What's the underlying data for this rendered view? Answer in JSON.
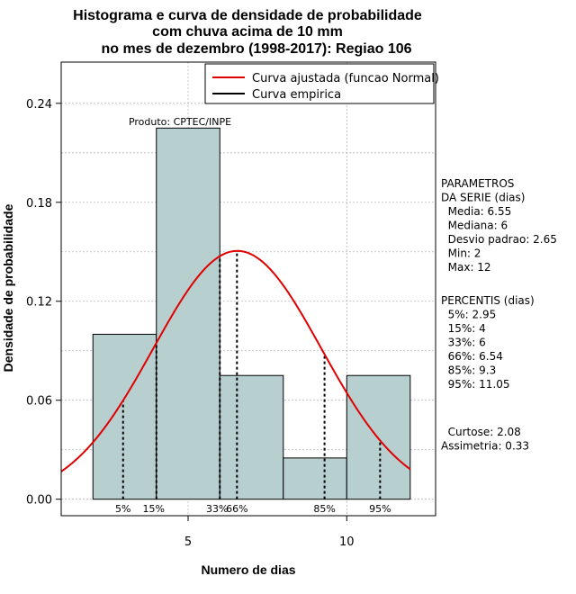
{
  "chart_data": {
    "type": "bar",
    "title_lines": [
      "Histograma e curva de densidade de probabilidade",
      "com chuva acima de 10 mm",
      "no mes de dezembro (1998-2017): Regiao 106"
    ],
    "xlabel": "Numero de dias",
    "ylabel": "Densidade de probabilidade",
    "xlim": [
      1.0,
      12.8
    ],
    "ylim": [
      -0.01,
      0.265
    ],
    "x_ticks": [
      5,
      10
    ],
    "y_ticks": [
      0.0,
      0.06,
      0.12,
      0.18,
      0.24
    ],
    "y_tick_labels": [
      "0.00",
      "0.06",
      "0.12",
      "0.18",
      "0.24"
    ],
    "grid": true,
    "legend_position": "top-right",
    "bins": [
      {
        "from": 2,
        "to": 4,
        "density": 0.1
      },
      {
        "from": 4,
        "to": 6,
        "density": 0.225
      },
      {
        "from": 6,
        "to": 8,
        "density": 0.075
      },
      {
        "from": 8,
        "to": 10,
        "density": 0.025
      },
      {
        "from": 10,
        "to": 12,
        "density": 0.075
      }
    ],
    "bar_color": "#b7cfcf",
    "series": [
      {
        "name": "Curva ajustada (funcao Normal)",
        "type": "line",
        "color": "#e00000",
        "distribution": "normal",
        "mean": 6.55,
        "sd": 2.65,
        "x_range": [
          1.0,
          12.0
        ]
      },
      {
        "name": "Curva empirica",
        "type": "line",
        "color": "#000000"
      }
    ],
    "percentile_marks": [
      {
        "label": "5%",
        "x": 2.95
      },
      {
        "label": "15%",
        "x": 4
      },
      {
        "label": "33%",
        "x": 6
      },
      {
        "label": "66%",
        "x": 6.54
      },
      {
        "label": "85%",
        "x": 9.3
      },
      {
        "label": "95%",
        "x": 11.05
      }
    ],
    "annotation": "Produto: CPTEC/INPE",
    "parameters_block": [
      "PARAMETROS",
      "DA SERIE (dias)",
      "  Media: 6.55",
      "  Mediana: 6",
      "  Desvio padrao: 2.65",
      "  Min: 2",
      "  Max: 12"
    ],
    "percentiles_block": [
      "PERCENTIS (dias)",
      "  5%: 2.95",
      "  15%: 4",
      "  33%: 6",
      "  66%: 6.54",
      "  85%: 9.3",
      "  95%: 11.05"
    ],
    "shape_block": [
      "  Curtose: 2.08",
      "Assimetria: 0.33"
    ]
  }
}
